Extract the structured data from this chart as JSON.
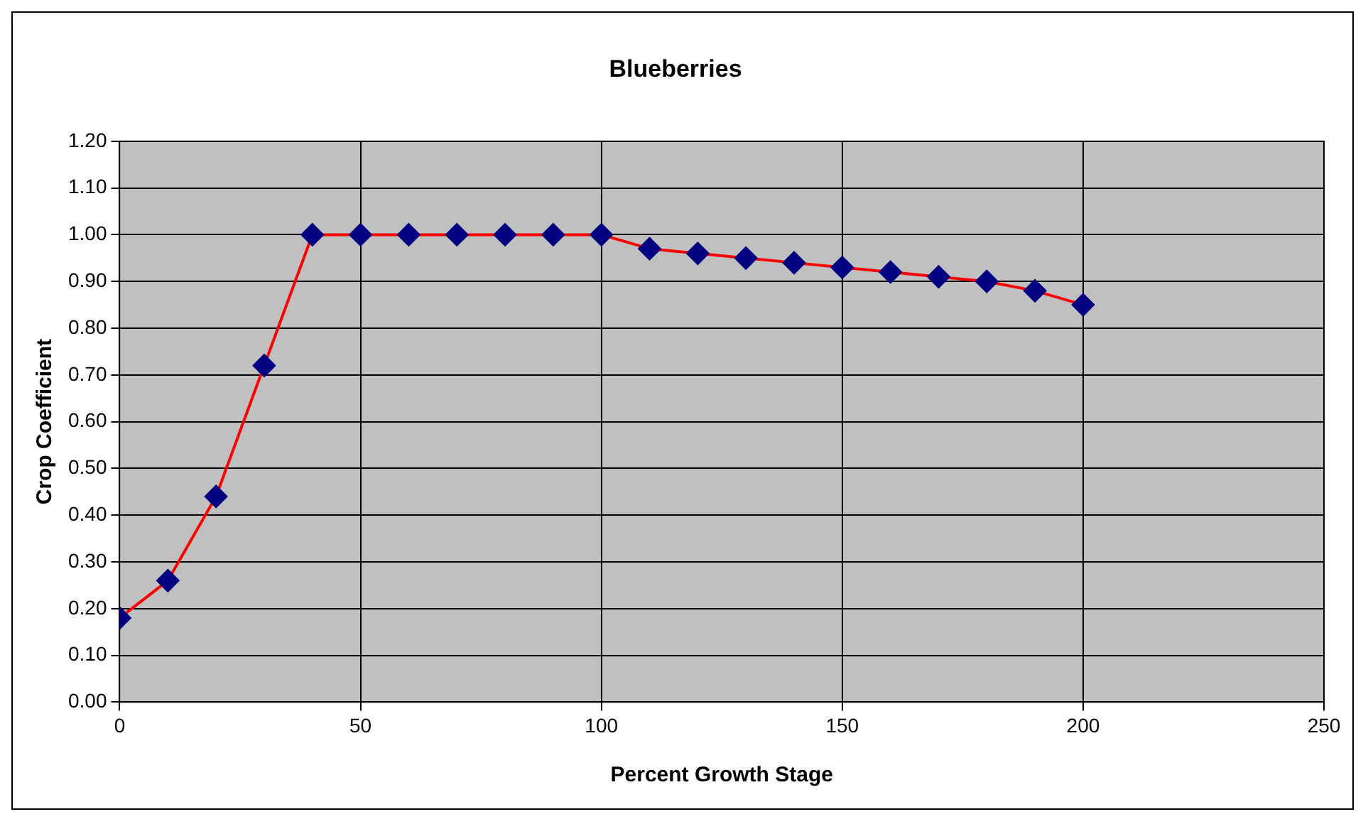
{
  "chart_data": {
    "type": "line",
    "title": "Blueberries",
    "xlabel": "Percent Growth Stage",
    "ylabel": "Crop Coefficient",
    "x": [
      0,
      10,
      20,
      30,
      40,
      50,
      60,
      70,
      80,
      90,
      100,
      110,
      120,
      130,
      140,
      150,
      160,
      170,
      180,
      190,
      200
    ],
    "series": [
      {
        "color": "#ff0000",
        "colors": [
          "#000080",
          "#000080",
          "#000080",
          "#000080",
          "#000080",
          "#000080",
          "#000080",
          "#000080",
          "#000080",
          "#000080",
          "#000080",
          "#000080",
          "#000080",
          "#000080",
          "#000080",
          "#000080",
          "#000080",
          "#000080",
          "#000080",
          "#000080",
          "#000080"
        ],
        "values": [
          0.18,
          0.26,
          0.44,
          0.72,
          1.0,
          1.0,
          1.0,
          1.0,
          1.0,
          1.0,
          1.0,
          0.97,
          0.96,
          0.95,
          0.94,
          0.93,
          0.92,
          0.91,
          0.9,
          0.88,
          0.85
        ]
      }
    ],
    "marker": "diamond",
    "line_style": "solid",
    "xlim": [
      0,
      250
    ],
    "xticks": [
      0,
      50,
      100,
      150,
      200,
      250
    ],
    "ylim": [
      0,
      1.2
    ],
    "yticks": [
      {
        "value": 0,
        "label": "0.00"
      },
      {
        "value": 0.1,
        "label": "0.10"
      },
      {
        "value": 0.2,
        "label": "0.20"
      },
      {
        "value": 0.3,
        "label": "0.30"
      },
      {
        "value": 0.4,
        "label": "0.40"
      },
      {
        "value": 0.5,
        "label": "0.50"
      },
      {
        "value": 0.6,
        "label": "0.60"
      },
      {
        "value": 0.7,
        "label": "0.70"
      },
      {
        "value": 0.8,
        "label": "0.80"
      },
      {
        "value": 0.9,
        "label": "0.90"
      },
      {
        "value": 1.0,
        "label": "1.00"
      },
      {
        "value": 1.1,
        "label": "1.10"
      },
      {
        "value": 1.2,
        "label": "1.20"
      }
    ],
    "grid": true,
    "legend": false
  }
}
